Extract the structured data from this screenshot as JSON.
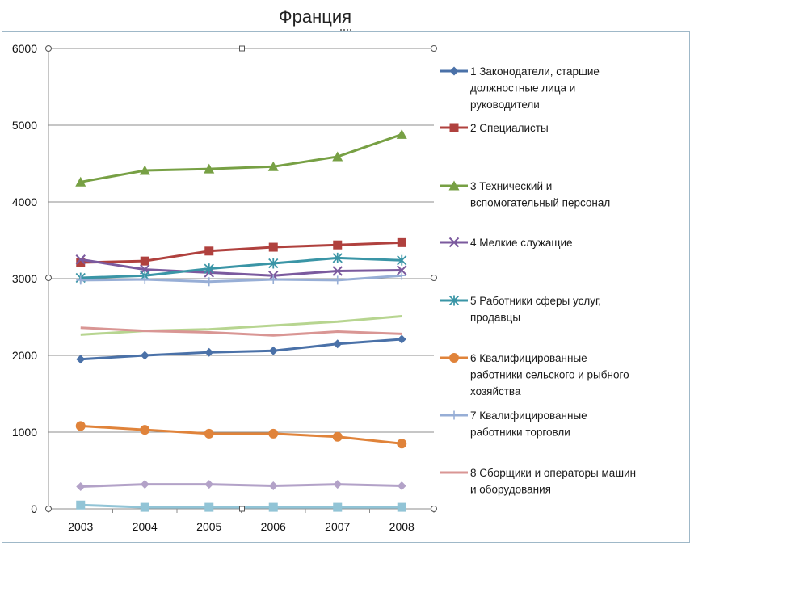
{
  "chart_data": {
    "type": "line",
    "title": "Франция",
    "categories": [
      "2003",
      "2004",
      "2005",
      "2006",
      "2007",
      "2008"
    ],
    "ylim": [
      0,
      6000
    ],
    "yticks": [
      0,
      1000,
      2000,
      3000,
      4000,
      5000,
      6000
    ],
    "grid": "horizontal",
    "legend_position": "right",
    "series": [
      {
        "name": "1 Законодатели, старшие должностные лица и руководители",
        "legend_lines": [
          "1 Законодатели, старшие",
          "должностные лица и",
          "руководители"
        ],
        "color": "#4a71a8",
        "marker": "diamond",
        "values": [
          1950,
          2000,
          2040,
          2060,
          2150,
          2210
        ]
      },
      {
        "name": "2 Специалисты",
        "legend_lines": [
          "2 Специалисты"
        ],
        "color": "#b0413e",
        "marker": "square",
        "values": [
          3210,
          3230,
          3360,
          3410,
          3440,
          3470
        ]
      },
      {
        "name": "3 Технический и вспомогательный персонал",
        "legend_lines": [
          "3 Технический и",
          "вспомогательный персонал"
        ],
        "color": "#77a044",
        "marker": "triangle",
        "values": [
          4260,
          4410,
          4430,
          4460,
          4590,
          4880
        ]
      },
      {
        "name": "4 Мелкие служащие",
        "legend_lines": [
          "4 Мелкие служащие"
        ],
        "color": "#7b5a9e",
        "marker": "x",
        "values": [
          3250,
          3120,
          3080,
          3040,
          3100,
          3110
        ]
      },
      {
        "name": "5 Работники сферы услуг, продавцы",
        "legend_lines": [
          "5 Работники сферы услуг,",
          "продавцы"
        ],
        "color": "#3a95a6",
        "marker": "star",
        "values": [
          3010,
          3040,
          3130,
          3200,
          3270,
          3240
        ]
      },
      {
        "name": "6 Квалифицированные работники сельского и рыбного хозяйства",
        "legend_lines": [
          "6 Квалифицированные",
          "работники сельского и рыбного",
          "хозяйства"
        ],
        "color": "#e0833a",
        "marker": "circle",
        "values": [
          1080,
          1030,
          980,
          980,
          940,
          850
        ]
      },
      {
        "name": "7 Квалифицированные работники торговли",
        "legend_lines": [
          "7 Квалифицированные",
          "работники торговли"
        ],
        "color": "#97aed6",
        "marker": "plus",
        "values": [
          2980,
          2990,
          2960,
          2990,
          2980,
          3040
        ]
      },
      {
        "name": "8 Сборщики и операторы машин и оборудования",
        "legend_lines": [
          "8 Сборщики и операторы машин",
          "и оборудования"
        ],
        "color": "#d99694",
        "marker": "none",
        "values": [
          2360,
          2320,
          2300,
          2260,
          2310,
          2280
        ]
      }
    ],
    "unlabeled_series": [
      {
        "color": "#b7d590",
        "marker": "none",
        "values": [
          2270,
          2320,
          2340,
          2390,
          2440,
          2510
        ]
      },
      {
        "color": "#b3a2c8",
        "marker": "diamond",
        "values": [
          290,
          320,
          320,
          300,
          320,
          300
        ]
      },
      {
        "color": "#92c4d6",
        "marker": "square",
        "values": [
          50,
          20,
          20,
          20,
          20,
          20
        ]
      }
    ]
  }
}
